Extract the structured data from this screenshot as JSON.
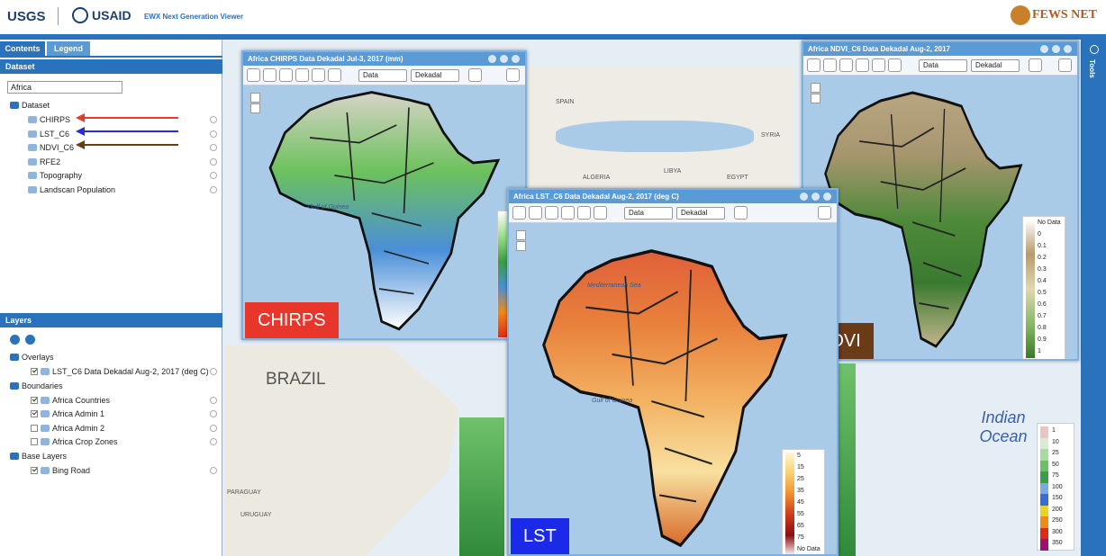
{
  "header": {
    "usgs": "USGS",
    "usaid": "USAID",
    "app_title": "EWX Next Generation Viewer",
    "fews": "FEWS NET"
  },
  "sidebar": {
    "tabs": [
      "Contents",
      "Legend"
    ],
    "dataset_header": "Dataset",
    "region_select": "Africa",
    "dataset_root": "Dataset",
    "datasets": [
      "CHIRPS",
      "LST_C6",
      "NDVI_C6",
      "RFE2",
      "Topography",
      "Landscan Population"
    ],
    "layers_header": "Layers",
    "groups": [
      {
        "name": "Overlays",
        "items": [
          {
            "label": "LST_C6 Data Dekadal Aug-2, 2017 (deg C)",
            "checked": true
          }
        ]
      },
      {
        "name": "Boundaries",
        "items": [
          {
            "label": "Africa Countries",
            "checked": true
          },
          {
            "label": "Africa Admin 1",
            "checked": true
          },
          {
            "label": "Africa Admin 2",
            "checked": false
          },
          {
            "label": "Africa Crop Zones",
            "checked": false
          }
        ]
      },
      {
        "name": "Base Layers",
        "items": [
          {
            "label": "Bing Road",
            "checked": true
          }
        ]
      }
    ]
  },
  "tools": "Tools",
  "base_map": {
    "labels": [
      "SPAIN",
      "ALGERIA",
      "LIBYA",
      "EGYPT",
      "SYRIA",
      "BRAZIL",
      "PARAGUAY",
      "URUGUAY"
    ],
    "ocean": "Indian Ocean",
    "legend": [
      "1",
      "10",
      "25",
      "50",
      "75",
      "100",
      "150",
      "200",
      "250",
      "300",
      "350"
    ]
  },
  "windows": [
    {
      "title": "Africa CHIRPS Data Dekadal Jul-3, 2017 (mm)",
      "selects": [
        "Data",
        "Dekadal"
      ],
      "label": "CHIRPS",
      "map_labels": [
        "Gulf of Guinea"
      ],
      "legend": []
    },
    {
      "title": "Africa LST_C6 Data Dekadal Aug-2, 2017 (deg C)",
      "selects": [
        "Data",
        "Dekadal"
      ],
      "label": "LST",
      "map_labels": [
        "Mediterranean Sea",
        "Gulf of Guinea"
      ],
      "legend": [
        "5",
        "15",
        "25",
        "35",
        "45",
        "55",
        "65",
        "75",
        "No Data"
      ]
    },
    {
      "title": "Africa NDVI_C6 Data Dekadal Aug-2, 2017",
      "selects": [
        "Data",
        "Dekadal"
      ],
      "label": "NDVI",
      "map_labels": [],
      "legend": [
        "No Data",
        "0",
        "0.1",
        "0.2",
        "0.3",
        "0.4",
        "0.5",
        "0.6",
        "0.7",
        "0.8",
        "0.9",
        "1"
      ]
    }
  ]
}
